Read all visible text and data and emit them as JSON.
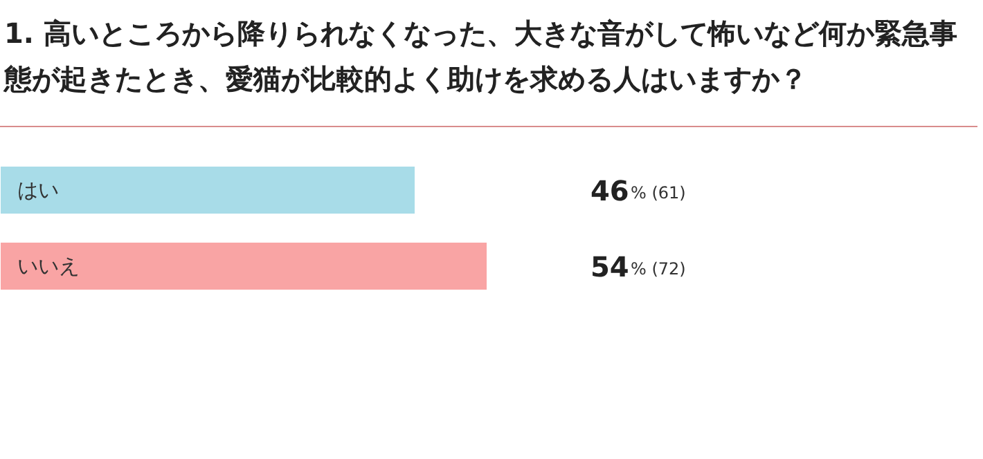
{
  "chart_data": {
    "type": "bar",
    "orientation": "horizontal",
    "title": "1. 高いところから降りられなくなった、大きな音がして怖いなど何か緊急事態が起きたとき、愛猫が比較的よく助けを求める人はいますか？",
    "categories": [
      "はい",
      "いいえ"
    ],
    "values": [
      46,
      54
    ],
    "colors": [
      "#a8dce8",
      "#f9a4a4"
    ],
    "value_labels": [
      "46% (61)",
      "54% (72)"
    ]
  }
}
